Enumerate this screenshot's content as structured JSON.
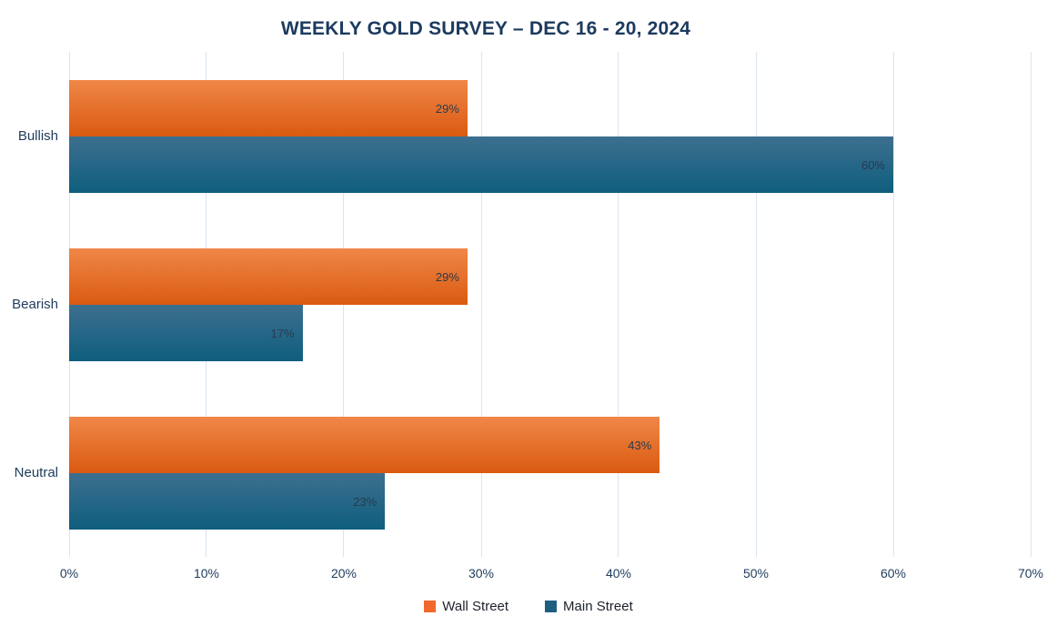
{
  "chart_data": {
    "type": "bar",
    "orientation": "horizontal",
    "title": "WEEKLY GOLD SURVEY – DEC 16 - 20, 2024",
    "categories": [
      "Bullish",
      "Bearish",
      "Neutral"
    ],
    "series": [
      {
        "name": "Wall Street",
        "values": [
          29,
          29,
          43
        ],
        "labels": [
          "29%",
          "29%",
          "43%"
        ],
        "color_top": "#F08748",
        "color_bottom": "#DA5A10",
        "legend_color": "#F2692E"
      },
      {
        "name": "Main Street",
        "values": [
          60,
          17,
          23
        ],
        "labels": [
          "60%",
          "17%",
          "23%"
        ],
        "color_top": "#3D6F8F",
        "color_bottom": "#0F5E7E",
        "legend_color": "#1F5E81"
      }
    ],
    "value_suffix": "%",
    "xlim": [
      0,
      70
    ],
    "x_ticks": [
      "0%",
      "10%",
      "20%",
      "30%",
      "40%",
      "50%",
      "60%",
      "70%"
    ],
    "grid": true,
    "legend_position": "bottom"
  },
  "colors": {
    "background": "#FFFFFF",
    "title_text": "#1C3A5E",
    "axis_text": "#1F3B5C",
    "data_label_text": "#2A3A4D",
    "legend_text": "#1C222B",
    "gridline": "#D9E4F3"
  }
}
